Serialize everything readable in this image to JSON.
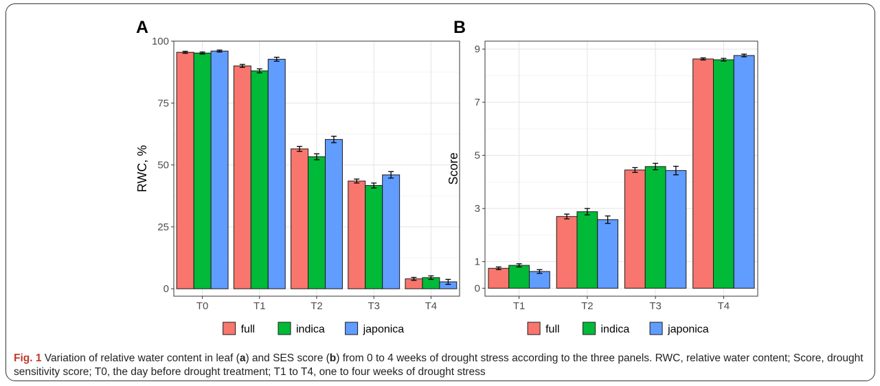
{
  "figure": {
    "caption": {
      "label": "Fig. 1",
      "part1": " Variation of relative water content in leaf (",
      "ref_a": "a",
      "part2": ") and SES score (",
      "ref_b": "b",
      "part3": ") from 0 to 4 weeks of drought stress according to the three panels. RWC, relative water content; Score, drought sensitivity score; T0, the day before drought treatment; T1 to T4, one to four weeks of drought stress"
    }
  },
  "legend": {
    "items": [
      {
        "label": "full",
        "color": "#F8766D"
      },
      {
        "label": "indica",
        "color": "#00BA38"
      },
      {
        "label": "japonica",
        "color": "#619CFF"
      }
    ]
  },
  "chart_data": [
    {
      "panel": "A",
      "type": "bar",
      "ylabel": "RWC, %",
      "xlabel": "",
      "categories": [
        "T0",
        "T1",
        "T2",
        "T3",
        "T4"
      ],
      "ylim": [
        -3,
        100
      ],
      "yticks": [
        0,
        25,
        50,
        75,
        100
      ],
      "grid": true,
      "legend_position": "bottom",
      "series": [
        {
          "name": "full",
          "color": "#F8766D",
          "values": [
            95.5,
            90.0,
            56.5,
            43.5,
            4.0
          ],
          "errors": [
            0.4,
            0.6,
            1.0,
            0.8,
            0.6
          ]
        },
        {
          "name": "indica",
          "color": "#00BA38",
          "values": [
            95.2,
            88.0,
            53.3,
            41.7,
            4.5
          ],
          "errors": [
            0.4,
            0.8,
            1.2,
            1.0,
            0.7
          ]
        },
        {
          "name": "japonica",
          "color": "#619CFF",
          "values": [
            96.0,
            92.7,
            60.3,
            46.0,
            2.8
          ],
          "errors": [
            0.4,
            0.8,
            1.3,
            1.3,
            1.0
          ]
        }
      ]
    },
    {
      "panel": "B",
      "type": "bar",
      "ylabel": "Score",
      "xlabel": "",
      "categories": [
        "T1",
        "T2",
        "T3",
        "T4"
      ],
      "ylim": [
        -0.3,
        9.3
      ],
      "yticks": [
        0,
        1,
        3,
        5,
        7,
        9
      ],
      "grid": true,
      "legend_position": "bottom",
      "series": [
        {
          "name": "full",
          "color": "#F8766D",
          "values": [
            0.75,
            2.7,
            4.45,
            8.63
          ],
          "errors": [
            0.05,
            0.09,
            0.09,
            0.04
          ]
        },
        {
          "name": "indica",
          "color": "#00BA38",
          "values": [
            0.86,
            2.88,
            4.58,
            8.6
          ],
          "errors": [
            0.06,
            0.12,
            0.12,
            0.05
          ]
        },
        {
          "name": "japonica",
          "color": "#619CFF",
          "values": [
            0.63,
            2.58,
            4.43,
            8.76
          ],
          "errors": [
            0.07,
            0.14,
            0.16,
            0.05
          ]
        }
      ]
    }
  ]
}
